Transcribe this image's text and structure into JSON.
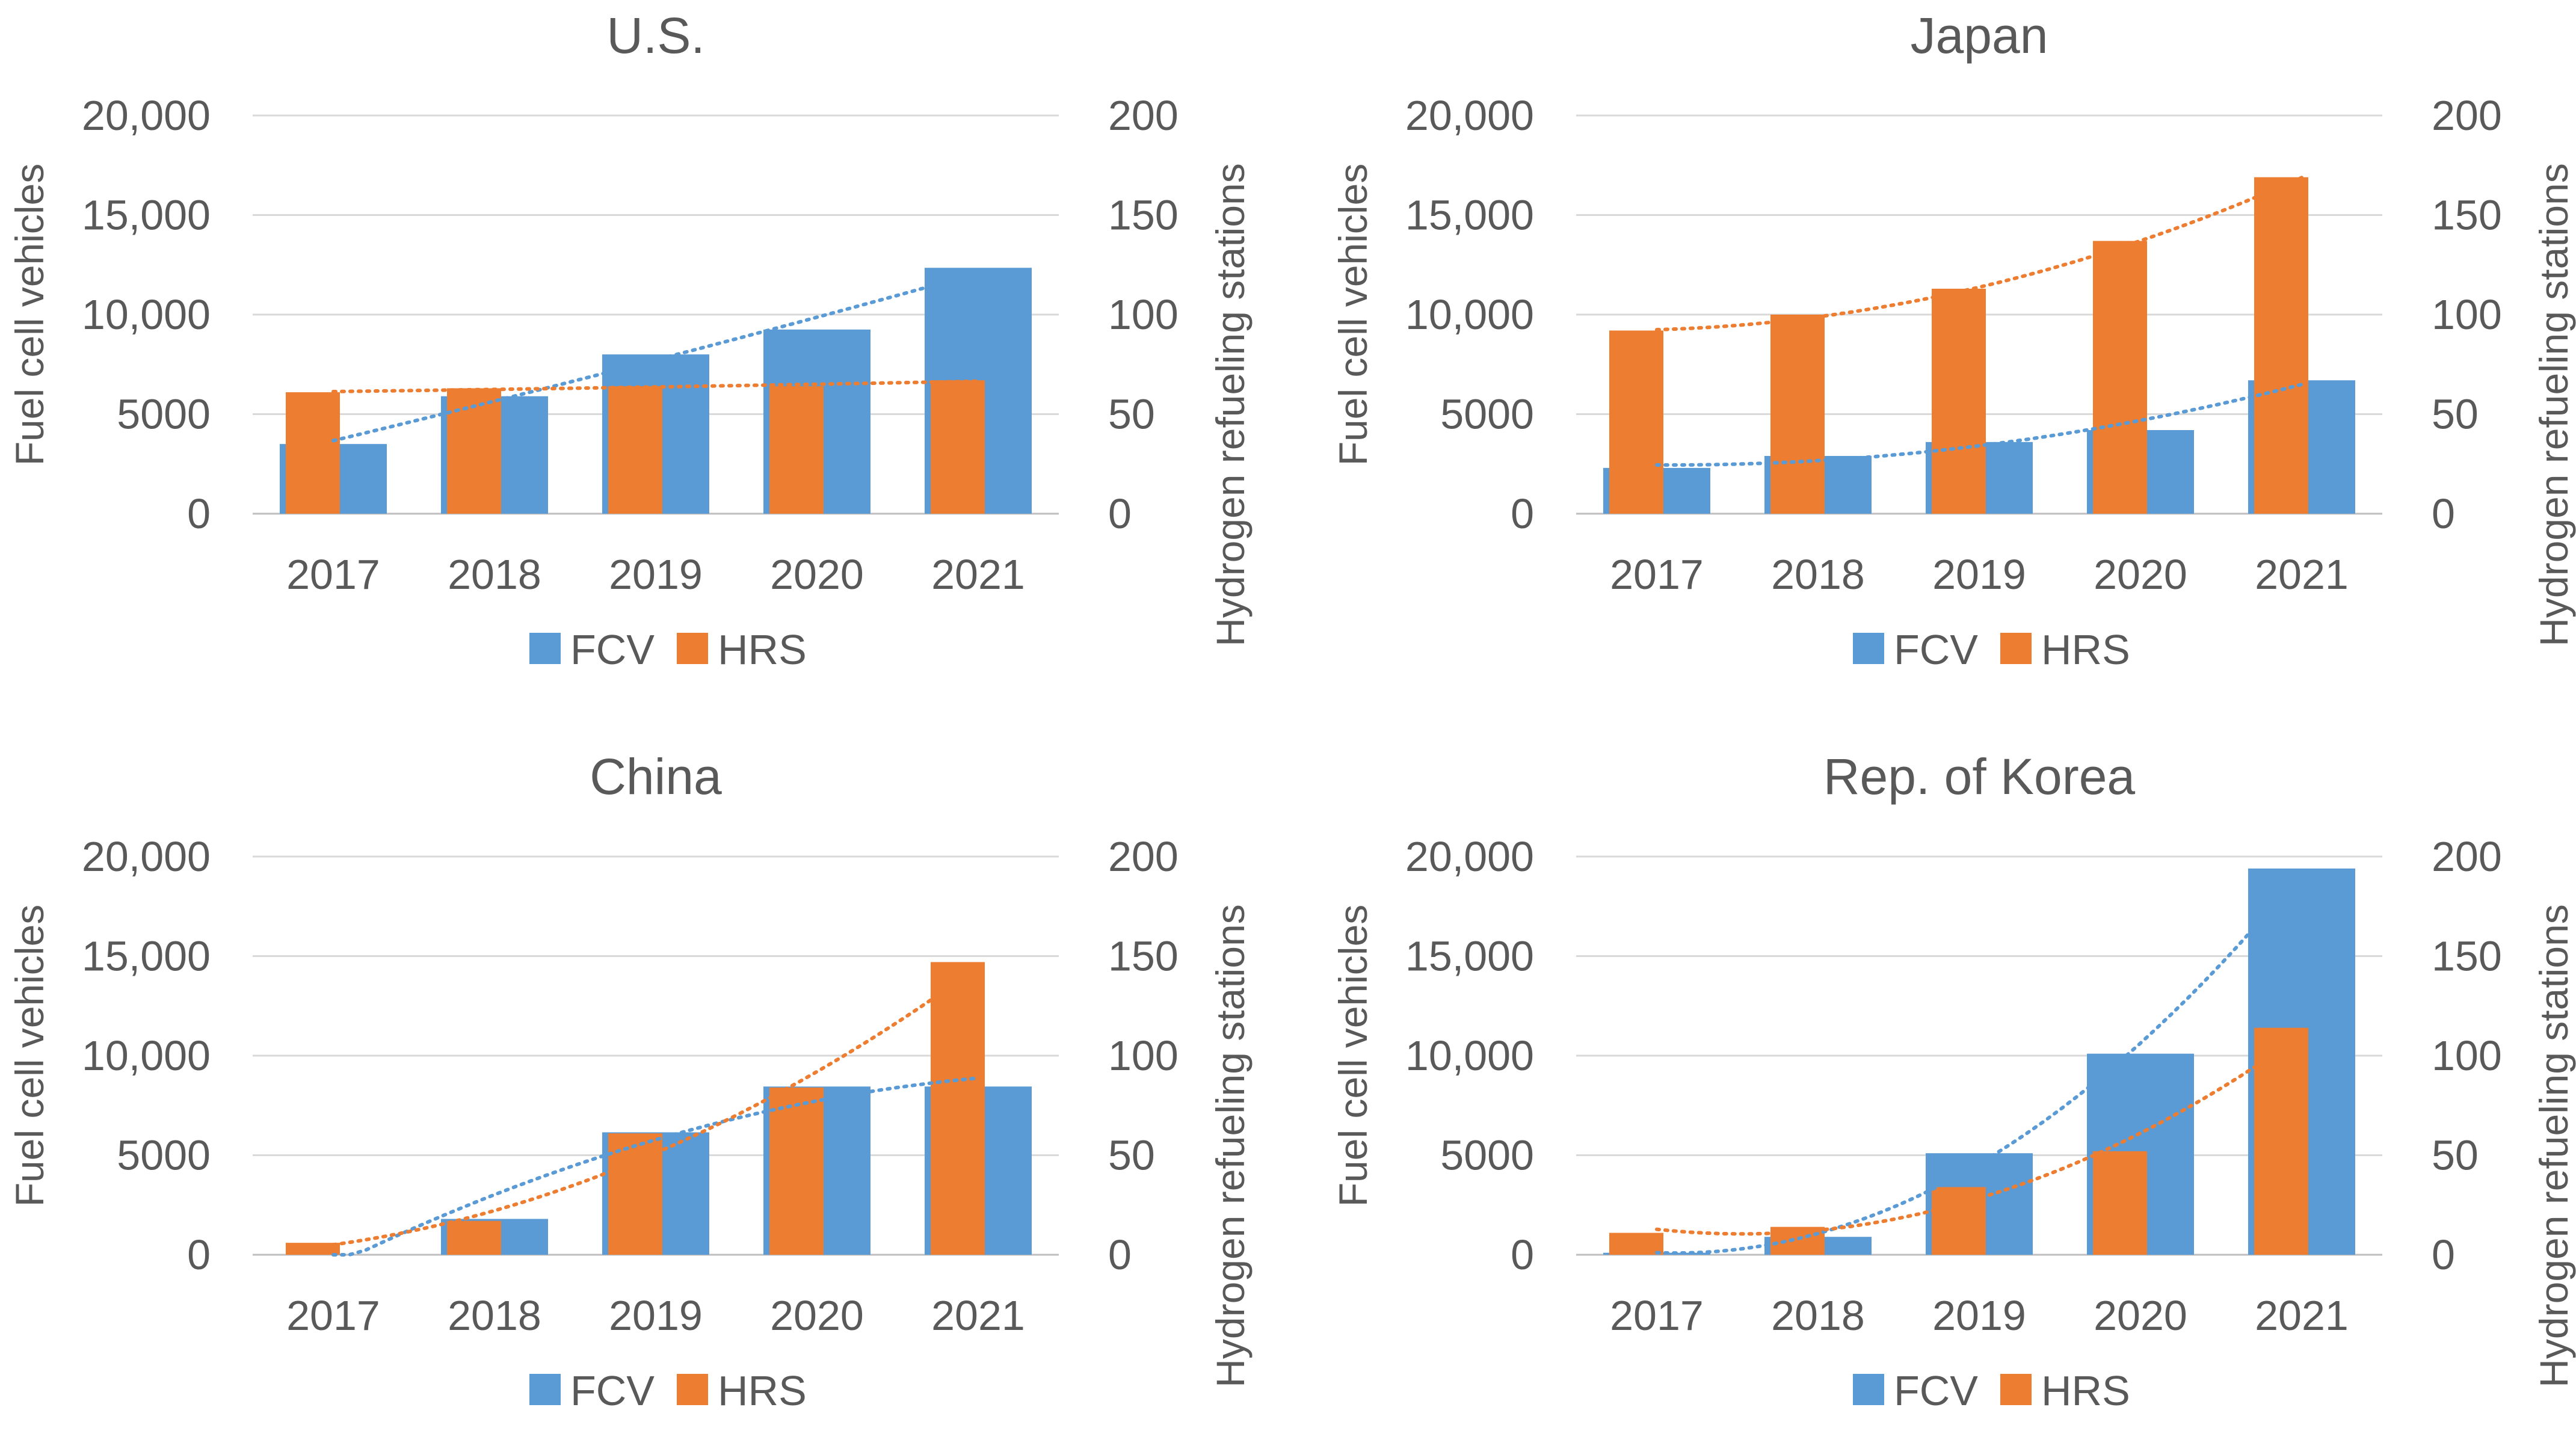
{
  "colors": {
    "fcv": "#5b9bd5",
    "hrs": "#ed7d31",
    "text": "#595959",
    "grid": "#d9d9d9"
  },
  "chart_data": [
    {
      "type": "bar",
      "title": "U.S.",
      "categories": [
        "2017",
        "2018",
        "2019",
        "2020",
        "2021"
      ],
      "ylabel": "Fuel cell vehicles",
      "y2label": "Hydrogen refueling stations",
      "ylim": [
        0,
        20000
      ],
      "y2lim": [
        0,
        200
      ],
      "yticks": [
        "0",
        "5000",
        "10,000",
        "15,000",
        "20,000"
      ],
      "y2ticks": [
        "0",
        "50",
        "100",
        "150",
        "200"
      ],
      "series": [
        {
          "name": "FCV",
          "axis": "left",
          "values": [
            3500,
            5900,
            8000,
            9250,
            12350
          ]
        },
        {
          "name": "HRS",
          "axis": "right",
          "values": [
            61,
            63,
            64,
            64,
            67
          ]
        }
      ],
      "trendlines": true,
      "legend": "bottom"
    },
    {
      "type": "bar",
      "title": "Japan",
      "categories": [
        "2017",
        "2018",
        "2019",
        "2020",
        "2021"
      ],
      "ylabel": "Fuel cell vehicles",
      "y2label": "Hydrogen refueling stations",
      "ylim": [
        0,
        20000
      ],
      "y2lim": [
        0,
        200
      ],
      "yticks": [
        "0",
        "5000",
        "10,000",
        "15,000",
        "20,000"
      ],
      "y2ticks": [
        "0",
        "50",
        "100",
        "150",
        "200"
      ],
      "series": [
        {
          "name": "FCV",
          "axis": "left",
          "values": [
            2300,
            2900,
            3600,
            4200,
            6700
          ]
        },
        {
          "name": "HRS",
          "axis": "right",
          "values": [
            92,
            100,
            113,
            137,
            169
          ]
        }
      ],
      "trendlines": true,
      "legend": "bottom"
    },
    {
      "type": "bar",
      "title": "China",
      "categories": [
        "2017",
        "2018",
        "2019",
        "2020",
        "2021"
      ],
      "ylabel": "Fuel cell vehicles",
      "y2label": "Hydrogen refueling stations",
      "ylim": [
        0,
        20000
      ],
      "y2lim": [
        0,
        200
      ],
      "yticks": [
        "0",
        "5000",
        "10,000",
        "15,000",
        "20,000"
      ],
      "y2ticks": [
        "0",
        "50",
        "100",
        "150",
        "200"
      ],
      "series": [
        {
          "name": "FCV",
          "axis": "left",
          "values": [
            0,
            1800,
            6150,
            8450,
            8450
          ]
        },
        {
          "name": "HRS",
          "axis": "right",
          "values": [
            6,
            17,
            61,
            84,
            147
          ]
        }
      ],
      "trendlines": true,
      "legend": "bottom"
    },
    {
      "type": "bar",
      "title": "Rep. of Korea",
      "categories": [
        "2017",
        "2018",
        "2019",
        "2020",
        "2021"
      ],
      "ylabel": "Fuel cell vehicles",
      "y2label": "Hydrogen refueling stations",
      "ylim": [
        0,
        20000
      ],
      "y2lim": [
        0,
        200
      ],
      "yticks": [
        "0",
        "5000",
        "10,000",
        "15,000",
        "20,000"
      ],
      "y2ticks": [
        "0",
        "50",
        "100",
        "150",
        "200"
      ],
      "series": [
        {
          "name": "FCV",
          "axis": "left",
          "values": [
            100,
            900,
            5100,
            10100,
            19400
          ]
        },
        {
          "name": "HRS",
          "axis": "right",
          "values": [
            11,
            14,
            34,
            52,
            114
          ]
        }
      ],
      "trendlines": true,
      "legend": "bottom"
    }
  ]
}
